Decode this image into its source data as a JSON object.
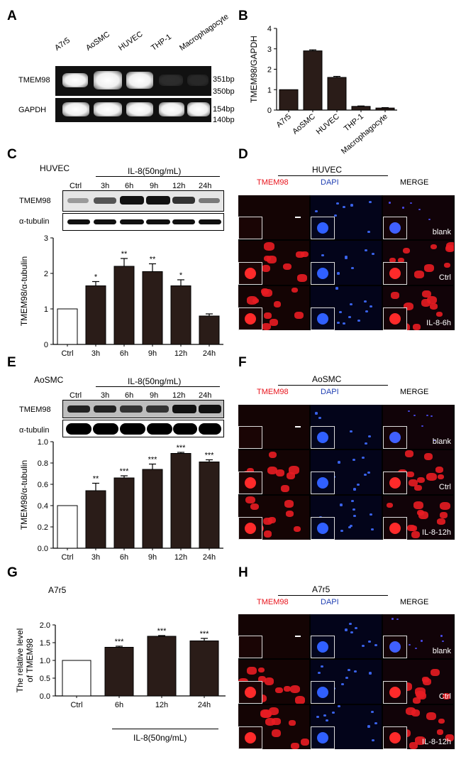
{
  "panels": {
    "A": {
      "label": "A",
      "lanes": [
        "A7r5",
        "AoSMC",
        "HUVEC",
        "THP-1",
        "Macrophagocyte"
      ],
      "rows": [
        {
          "name": "TMEM98",
          "sizes": [
            "351bp",
            "350bp"
          ]
        },
        {
          "name": "GAPDH",
          "sizes": [
            "154bp",
            "140bp"
          ]
        }
      ]
    },
    "B": {
      "label": "B"
    },
    "C": {
      "label": "C",
      "cell": "HUVEC",
      "treatment": "IL-8(50ng/mL)",
      "lanes": [
        "Ctrl",
        "3h",
        "6h",
        "9h",
        "12h",
        "24h"
      ],
      "rows": [
        "TMEM98",
        "α-tubulin"
      ]
    },
    "D": {
      "label": "D",
      "cell": "HUVEC",
      "cols": [
        "TMEM98",
        "DAPI",
        "MERGE"
      ],
      "rows": [
        "blank",
        "Ctrl",
        "IL-8-6h"
      ]
    },
    "E": {
      "label": "E",
      "cell": "AoSMC",
      "treatment": "IL-8(50ng/mL)",
      "lanes": [
        "Ctrl",
        "3h",
        "6h",
        "9h",
        "12h",
        "24h"
      ],
      "rows": [
        "TMEM98",
        "α-tubulin"
      ]
    },
    "F": {
      "label": "F",
      "cell": "AoSMC",
      "cols": [
        "TMEM98",
        "DAPI",
        "MERGE"
      ],
      "rows": [
        "blank",
        "Ctrl",
        "IL-8-12h"
      ]
    },
    "G": {
      "label": "G",
      "cell": "A7r5",
      "treatment": "IL-8(50ng/mL)"
    },
    "H": {
      "label": "H",
      "cell": "A7r5",
      "cols": [
        "TMEM98",
        "DAPI",
        "MERGE"
      ],
      "rows": [
        "blank",
        "Ctrl",
        "IL-8-12h"
      ]
    }
  },
  "colors": {
    "tmem98": "#e8141c",
    "dapi": "#1f3fb3",
    "bar_dark": "#2a1c18"
  },
  "chart_data": [
    {
      "id": "B",
      "type": "bar",
      "categories": [
        "A7r5",
        "AoSMC",
        "HUVEC",
        "THP-1",
        "Macrophagocyte"
      ],
      "values": [
        1.0,
        2.9,
        1.6,
        0.18,
        0.1
      ],
      "errors": [
        0.0,
        0.05,
        0.05,
        0.02,
        0.02
      ],
      "ylabel": "TMEM98/GAPDH",
      "ylim": [
        0,
        4
      ],
      "yticks": [
        "0",
        "1",
        "2",
        "3",
        "4"
      ]
    },
    {
      "id": "C",
      "type": "bar",
      "categories": [
        "Ctrl",
        "3h",
        "6h",
        "9h",
        "12h",
        "24h"
      ],
      "values": [
        1.0,
        1.65,
        2.2,
        2.05,
        1.65,
        0.8
      ],
      "errors": [
        0.0,
        0.12,
        0.22,
        0.22,
        0.17,
        0.06
      ],
      "significance": [
        "",
        "*",
        "**",
        "**",
        "*",
        ""
      ],
      "ylabel": "TMEM98/α-tubulin",
      "ylim": [
        0,
        3
      ],
      "yticks": [
        "0",
        "1",
        "2",
        "3"
      ]
    },
    {
      "id": "E",
      "type": "bar",
      "categories": [
        "Ctrl",
        "3h",
        "6h",
        "9h",
        "12h",
        "24h"
      ],
      "values": [
        0.4,
        0.54,
        0.66,
        0.74,
        0.89,
        0.81
      ],
      "errors": [
        0.0,
        0.07,
        0.02,
        0.05,
        0.01,
        0.02
      ],
      "significance": [
        "",
        "**",
        "***",
        "***",
        "***",
        "***"
      ],
      "ylabel": "TMEM98/α-tubulin",
      "ylim": [
        0,
        1.0
      ],
      "yticks": [
        "0.0",
        "0.2",
        "0.4",
        "0.6",
        "0.8",
        "1.0"
      ]
    },
    {
      "id": "G",
      "type": "bar",
      "categories": [
        "Ctrl",
        "6h",
        "12h",
        "24h"
      ],
      "values": [
        1.0,
        1.37,
        1.68,
        1.55
      ],
      "errors": [
        0.0,
        0.03,
        0.02,
        0.07
      ],
      "significance": [
        "",
        "***",
        "***",
        "***"
      ],
      "ylabel": "The relative level of TMEM98",
      "ylim": [
        0,
        2.0
      ],
      "yticks": [
        "0.0",
        "0.5",
        "1.0",
        "1.5",
        "2.0"
      ]
    }
  ]
}
